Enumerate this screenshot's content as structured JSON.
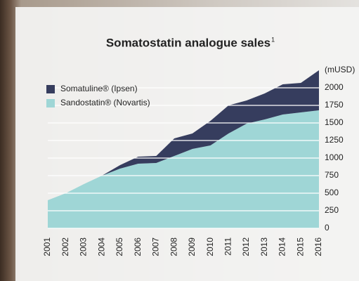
{
  "chart_data": {
    "type": "stacked_area",
    "title": "Somatostatin analogue sales",
    "title_note": "1",
    "y_label": "(mUSD)",
    "categories": [
      "2001",
      "2002",
      "2003",
      "2004",
      "2005",
      "2006",
      "2007",
      "2008",
      "2009",
      "2010",
      "2011",
      "2012",
      "2013",
      "2014",
      "2015",
      "2016"
    ],
    "series": [
      {
        "name": "Somatuline® (Ipsen)",
        "color": "#363d5e",
        "values": [
          0,
          0,
          0,
          0,
          50,
          100,
          100,
          250,
          220,
          350,
          400,
          330,
          370,
          430,
          420,
          570
        ]
      },
      {
        "name": "Sandostatin® (Novartis)",
        "color": "#9fd6d6",
        "values": [
          400,
          500,
          630,
          750,
          850,
          920,
          930,
          1030,
          1130,
          1180,
          1350,
          1490,
          1550,
          1620,
          1650,
          1680
        ]
      }
    ],
    "ylim": [
      0,
      2250
    ],
    "yticks": [
      0,
      250,
      500,
      750,
      1000,
      1250,
      1500,
      1750,
      2000
    ],
    "grid": true,
    "legend": "upper left"
  }
}
